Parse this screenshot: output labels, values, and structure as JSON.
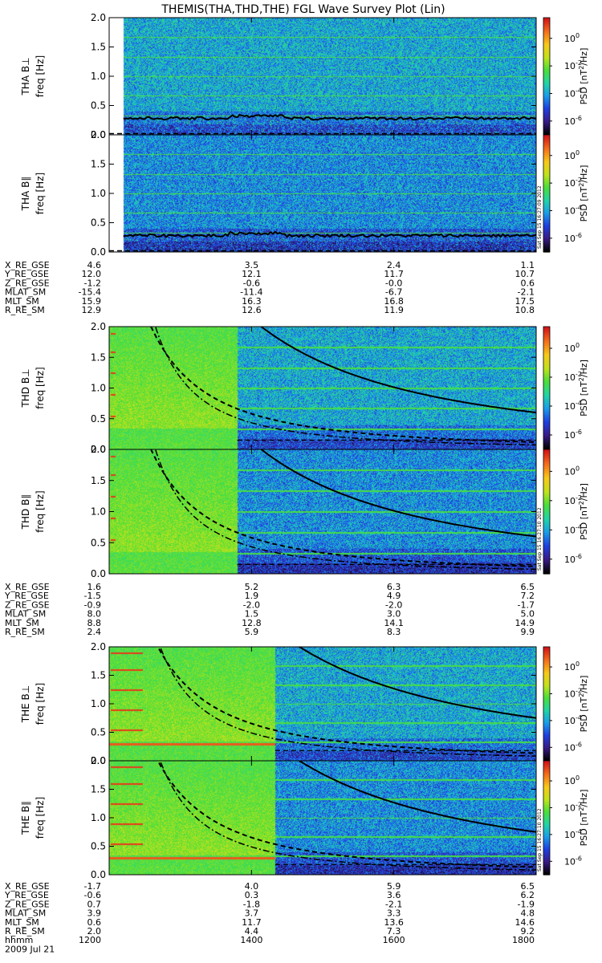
{
  "title": "THEMIS(THA,THD,THE) FGL Wave Survey Plot (Lin)",
  "chart_data": {
    "type": "heatmap",
    "title": "THEMIS(THA,THD,THE) FGL Wave Survey Plot (Lin)",
    "date_label": "2009 Jul 21",
    "time_label": "hhmm",
    "x_ticks": [
      "1200",
      "1400",
      "1600",
      "1800"
    ],
    "y_ticks": [
      "0.0",
      "0.5",
      "1.0",
      "1.5",
      "2.0"
    ],
    "ylim": [
      0,
      2.0
    ],
    "xlim_minutes": [
      720,
      1080
    ],
    "ylabel": "freq [Hz]",
    "colorbar": {
      "label": "PSD [nT²/Hz]",
      "label_prefix": "PSD [nT",
      "label_exp": "2",
      "label_suffix": "/Hz]",
      "tick_base": "10",
      "tick_exponents": [
        "0",
        "-2",
        "-4",
        "-6"
      ],
      "range_log": [
        -7,
        1.5
      ],
      "colors": [
        "#000000",
        "#3a1a88",
        "#1f3fe0",
        "#1a9dea",
        "#22d4a6",
        "#4ade3a",
        "#c2e21c",
        "#f7c81a",
        "#f5701c",
        "#d41818"
      ]
    },
    "stamps": [
      "Sat Sep 15 16:27:09 2012",
      "Sat Sep 15 16:27:10 2012",
      "Sat Sep 15 16:27:10 2012"
    ],
    "panels": [
      {
        "probe": "tha",
        "label_main": "THA B⊥",
        "label_sub": "freq [Hz]",
        "stamp": false,
        "data_start_min": 732,
        "burst_end_min": null,
        "cyc": 0.28
      },
      {
        "probe": "tha",
        "label_main": "THA B∥",
        "label_sub": "freq [Hz]",
        "stamp": true,
        "data_start_min": 732,
        "burst_end_min": null,
        "cyc": 0.28
      },
      {
        "probe": "thd",
        "label_main": "THD B⊥",
        "label_sub": "freq [Hz]",
        "stamp": false,
        "data_start_min": 720,
        "burst_end_min": 828,
        "cyc_solid": [
          0.8,
          0.6
        ],
        "cyc_dash": [
          0.32,
          0.15
        ]
      },
      {
        "probe": "thd",
        "label_main": "THD B∥",
        "label_sub": "freq [Hz]",
        "stamp": true,
        "data_start_min": 720,
        "burst_end_min": 828,
        "cyc_solid": [
          0.8,
          0.6
        ],
        "cyc_dash": [
          0.32,
          0.15
        ]
      },
      {
        "probe": "the",
        "label_main": "THE B⊥",
        "label_sub": "freq [Hz]",
        "stamp": false,
        "data_start_min": 720,
        "burst_end_min": 860,
        "cyc_solid": [
          0.9,
          0.75
        ],
        "cyc_dash": [
          0.32,
          0.18
        ]
      },
      {
        "probe": "the",
        "label_main": "THE B∥",
        "label_sub": "freq [Hz]",
        "stamp": true,
        "data_start_min": 720,
        "burst_end_min": 860,
        "cyc_solid": [
          0.9,
          0.75
        ],
        "cyc_dash": [
          0.32,
          0.18
        ]
      }
    ],
    "ephemeris": [
      {
        "probe": "tha",
        "rows": [
          {
            "name": "X_RE_GSE",
            "values": [
              "4.6",
              "3.5",
              "2.4",
              "1.1"
            ]
          },
          {
            "name": "Y_RE_GSE",
            "values": [
              "12.0",
              "12.1",
              "11.7",
              "10.7"
            ]
          },
          {
            "name": "Z_RE_GSE",
            "values": [
              "-1.2",
              "-0.6",
              "-0.0",
              "0.6"
            ]
          },
          {
            "name": "MLAT_SM",
            "values": [
              "-15.4",
              "-11.4",
              "-6.7",
              "-2.1"
            ]
          },
          {
            "name": "MLT_SM",
            "values": [
              "15.9",
              "16.3",
              "16.8",
              "17.5"
            ]
          },
          {
            "name": "R_RE_SM",
            "values": [
              "12.9",
              "12.6",
              "11.9",
              "10.8"
            ]
          }
        ]
      },
      {
        "probe": "thd",
        "rows": [
          {
            "name": "X_RE_GSE",
            "values": [
              "1.6",
              "5.2",
              "6.3",
              "6.5"
            ]
          },
          {
            "name": "Y_RE_GSE",
            "values": [
              "-1.5",
              "1.9",
              "4.9",
              "7.2"
            ]
          },
          {
            "name": "Z_RE_GSE",
            "values": [
              "-0.9",
              "-2.0",
              "-2.0",
              "-1.7"
            ]
          },
          {
            "name": "MLAT_SM",
            "values": [
              "8.0",
              "1.5",
              "3.0",
              "5.0"
            ]
          },
          {
            "name": "MLT_SM",
            "values": [
              "8.8",
              "12.8",
              "14.1",
              "14.9"
            ]
          },
          {
            "name": "R_RE_SM",
            "values": [
              "2.4",
              "5.9",
              "8.3",
              "9.9"
            ]
          }
        ]
      },
      {
        "probe": "the",
        "rows": [
          {
            "name": "X_RE_GSE",
            "values": [
              "-1.7",
              "4.0",
              "5.9",
              "6.5"
            ]
          },
          {
            "name": "Y_RE_GSE",
            "values": [
              "-0.6",
              "0.3",
              "3.6",
              "6.2"
            ]
          },
          {
            "name": "Z_RE_GSE",
            "values": [
              "0.7",
              "-1.8",
              "-2.1",
              "-1.9"
            ]
          },
          {
            "name": "MLAT_SM",
            "values": [
              "3.9",
              "3.7",
              "3.3",
              "4.8"
            ]
          },
          {
            "name": "MLT_SM",
            "values": [
              "0.6",
              "11.7",
              "13.6",
              "14.6"
            ]
          },
          {
            "name": "R_RE_SM",
            "values": [
              "2.0",
              "4.4",
              "7.3",
              "9.2"
            ]
          }
        ]
      }
    ]
  }
}
